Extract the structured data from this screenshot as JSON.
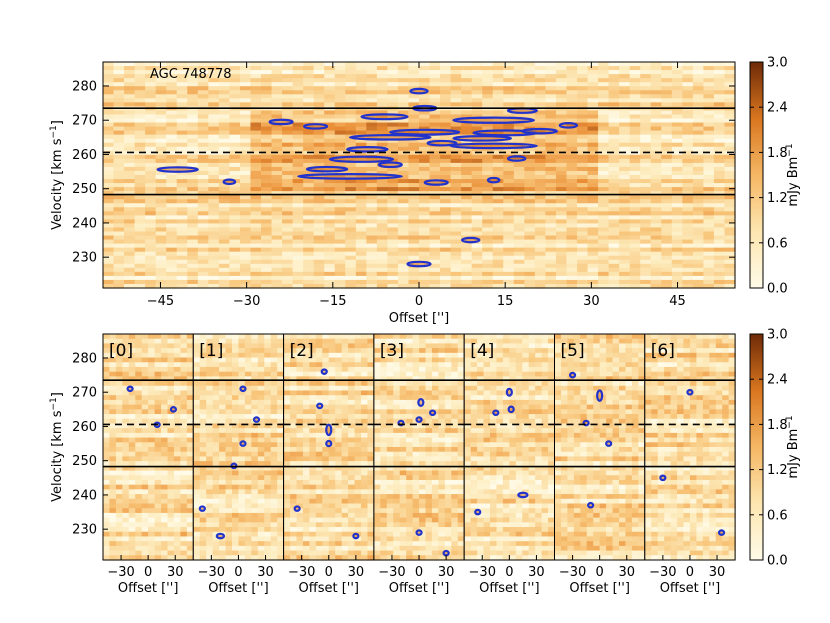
{
  "colors": {
    "cmap_low": "#fffbe8",
    "cmap_mid": "#f2a445",
    "cmap_high": "#6e2a07",
    "contour": "#2233cc",
    "line": "#000000"
  },
  "chart_data": [
    {
      "type": "heatmap",
      "title": "",
      "annotation": "AGC 748778",
      "xlabel": "Offset ['']",
      "ylabel": "Velocity [km s$^{-1}$]",
      "ylabel_text": "Velocity [km s",
      "ylabel_sup": "−1",
      "ylabel_end": "]",
      "xlim": [
        -55,
        55
      ],
      "ylim": [
        221,
        287
      ],
      "xticks": [
        -45,
        -30,
        -15,
        0,
        15,
        30,
        45
      ],
      "yticks": [
        230,
        240,
        250,
        260,
        270,
        280
      ],
      "hlines_solid": [
        273.5,
        248.3
      ],
      "hline_dashed": 260.6,
      "contour_regions": [
        {
          "x": 0,
          "y": 278.5,
          "w": 3,
          "h": 0.6
        },
        {
          "x": 1,
          "y": 273.5,
          "w": 4,
          "h": 1.0
        },
        {
          "x": -6,
          "y": 271.0,
          "w": 8,
          "h": 1.4
        },
        {
          "x": 13,
          "y": 270.0,
          "w": 14,
          "h": 1.5
        },
        {
          "x": 18,
          "y": 272.8,
          "w": 5,
          "h": 0.6
        },
        {
          "x": -24,
          "y": 269.5,
          "w": 4,
          "h": 0.7
        },
        {
          "x": -18,
          "y": 268.2,
          "w": 4,
          "h": 0.7
        },
        {
          "x": 26,
          "y": 268.5,
          "w": 3,
          "h": 0.5
        },
        {
          "x": 1,
          "y": 266.5,
          "w": 12,
          "h": 1.4
        },
        {
          "x": 15,
          "y": 266.3,
          "w": 11,
          "h": 1.4
        },
        {
          "x": -5,
          "y": 265.0,
          "w": 14,
          "h": 1.0
        },
        {
          "x": 11,
          "y": 264.7,
          "w": 10,
          "h": 1.2
        },
        {
          "x": 21,
          "y": 266.8,
          "w": 6,
          "h": 0.8
        },
        {
          "x": 13,
          "y": 262.5,
          "w": 15,
          "h": 1.1
        },
        {
          "x": 4,
          "y": 263.3,
          "w": 5,
          "h": 0.7
        },
        {
          "x": -9,
          "y": 261.5,
          "w": 7,
          "h": 1.0
        },
        {
          "x": -10,
          "y": 258.6,
          "w": 11,
          "h": 1.5
        },
        {
          "x": -16,
          "y": 255.7,
          "w": 7,
          "h": 1.3
        },
        {
          "x": -42,
          "y": 255.6,
          "w": 7,
          "h": 0.5
        },
        {
          "x": -12,
          "y": 253.6,
          "w": 18,
          "h": 1.3
        },
        {
          "x": -5,
          "y": 257.0,
          "w": 4,
          "h": 0.7
        },
        {
          "x": 17,
          "y": 258.8,
          "w": 3,
          "h": 0.4
        },
        {
          "x": 3,
          "y": 251.8,
          "w": 4,
          "h": 0.5
        },
        {
          "x": 13,
          "y": 252.5,
          "w": 2,
          "h": 0.4
        },
        {
          "x": -33,
          "y": 252.0,
          "w": 2,
          "h": 0.4
        },
        {
          "x": 9,
          "y": 235.0,
          "w": 3,
          "h": 0.5
        },
        {
          "x": 0,
          "y": 228.0,
          "w": 4,
          "h": 0.8
        }
      ],
      "colorbar": {
        "label": "mJy Bm",
        "label_sup": "−1",
        "range": [
          0.0,
          3.0
        ],
        "ticks": [
          "0.0",
          "0.6",
          "1.2",
          "1.8",
          "2.4",
          "3.0"
        ]
      }
    },
    {
      "type": "heatmap",
      "title": "",
      "panel_labels": [
        "[0]",
        "[1]",
        "[2]",
        "[3]",
        "[4]",
        "[5]",
        "[6]"
      ],
      "xlabel": "Offset ['']",
      "ylabel": "Velocity [km s$^{-1}$]",
      "ylabel_text": "Velocity [km s",
      "ylabel_sup": "−1",
      "ylabel_end": "]",
      "xlim": [
        -50,
        50
      ],
      "ylim": [
        221,
        287
      ],
      "xticks": [
        -30,
        0,
        30
      ],
      "yticks": [
        230,
        240,
        250,
        260,
        270,
        280
      ],
      "hlines_solid": [
        273.5,
        248.3
      ],
      "hline_dashed": 260.6,
      "panel_contours": [
        [
          {
            "x": -20,
            "y": 271,
            "w": 3,
            "h": 0.8
          },
          {
            "x": 10,
            "y": 260.5,
            "w": 3,
            "h": 0.6
          },
          {
            "x": 28,
            "y": 265,
            "w": 3,
            "h": 0.6
          }
        ],
        [
          {
            "x": 5,
            "y": 271,
            "w": 3,
            "h": 1
          },
          {
            "x": 5,
            "y": 255,
            "w": 5,
            "h": 1.2
          },
          {
            "x": -5,
            "y": 248.5,
            "w": 4,
            "h": 1
          },
          {
            "x": -40,
            "y": 236,
            "w": 3,
            "h": 1
          },
          {
            "x": -20,
            "y": 228,
            "w": 8,
            "h": 0.8
          },
          {
            "x": 20,
            "y": 262,
            "w": 2,
            "h": 0.6
          }
        ],
        [
          {
            "x": -5,
            "y": 276,
            "w": 3,
            "h": 0.8
          },
          {
            "x": 0,
            "y": 259,
            "w": 5,
            "h": 3
          },
          {
            "x": 0,
            "y": 255,
            "w": 4,
            "h": 1.5
          },
          {
            "x": -10,
            "y": 266,
            "w": 3,
            "h": 0.8
          },
          {
            "x": -35,
            "y": 236,
            "w": 3,
            "h": 1
          },
          {
            "x": 30,
            "y": 228,
            "w": 3,
            "h": 0.6
          }
        ],
        [
          {
            "x": 2,
            "y": 267,
            "w": 5,
            "h": 2
          },
          {
            "x": 0,
            "y": 262,
            "w": 3,
            "h": 1.2
          },
          {
            "x": 15,
            "y": 264,
            "w": 3,
            "h": 0.8
          },
          {
            "x": -20,
            "y": 261,
            "w": 3,
            "h": 0.6
          },
          {
            "x": 30,
            "y": 223,
            "w": 3,
            "h": 1
          },
          {
            "x": 0,
            "y": 229,
            "w": 3,
            "h": 0.8
          }
        ],
        [
          {
            "x": 0,
            "y": 270,
            "w": 4,
            "h": 2
          },
          {
            "x": 2,
            "y": 265,
            "w": 5,
            "h": 1.6
          },
          {
            "x": -15,
            "y": 264,
            "w": 3,
            "h": 0.8
          },
          {
            "x": 15,
            "y": 240,
            "w": 10,
            "h": 0.8
          },
          {
            "x": -35,
            "y": 235,
            "w": 3,
            "h": 1
          }
        ],
        [
          {
            "x": 0,
            "y": 269,
            "w": 5,
            "h": 3
          },
          {
            "x": -30,
            "y": 275,
            "w": 3,
            "h": 1
          },
          {
            "x": -15,
            "y": 261,
            "w": 4,
            "h": 0.8
          },
          {
            "x": 10,
            "y": 255,
            "w": 3,
            "h": 1
          },
          {
            "x": -10,
            "y": 237,
            "w": 3,
            "h": 0.8
          }
        ],
        [
          {
            "x": 0,
            "y": 270,
            "w": 3,
            "h": 0.8
          },
          {
            "x": 35,
            "y": 229,
            "w": 5,
            "h": 0.8
          },
          {
            "x": -30,
            "y": 245,
            "w": 3,
            "h": 0.6
          }
        ]
      ],
      "colorbar": {
        "label": "mJy Bm",
        "label_sup": "−1",
        "range": [
          0.0,
          3.0
        ],
        "ticks": [
          "0.0",
          "0.6",
          "1.2",
          "1.8",
          "2.4",
          "3.0"
        ]
      }
    }
  ]
}
